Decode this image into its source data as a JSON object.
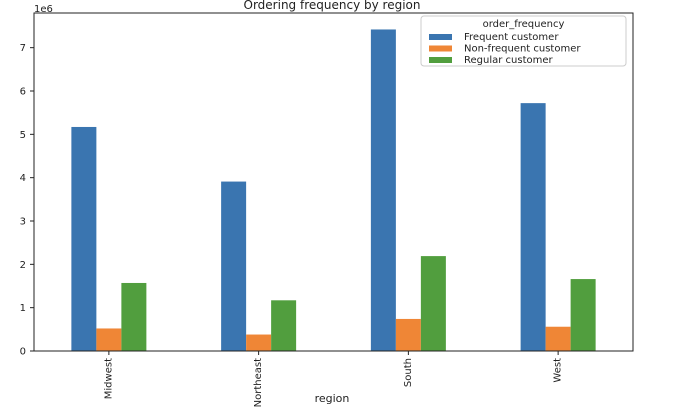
{
  "chart_data": {
    "type": "bar",
    "title": "Ordering frequency by region",
    "xlabel": "region",
    "ylabel": "",
    "y_offset_label": "1e6",
    "categories": [
      "Midwest",
      "Northeast",
      "South",
      "West"
    ],
    "series": [
      {
        "name": "Frequent customer",
        "color": "#3a75b0",
        "values": [
          5170000,
          3910000,
          7420000,
          5720000
        ]
      },
      {
        "name": "Non-frequent customer",
        "color": "#ef8636",
        "values": [
          520000,
          380000,
          740000,
          560000
        ]
      },
      {
        "name": "Regular customer",
        "color": "#519e3e",
        "values": [
          1570000,
          1170000,
          2190000,
          1660000
        ]
      }
    ],
    "ylim": [
      0,
      7800000
    ],
    "yticks": [
      0,
      1000000,
      2000000,
      3000000,
      4000000,
      5000000,
      6000000,
      7000000
    ],
    "ytick_labels": [
      "0",
      "1",
      "2",
      "3",
      "4",
      "5",
      "6",
      "7"
    ],
    "legend": {
      "title": "order_frequency",
      "placement": "top-right"
    },
    "grid": false
  }
}
